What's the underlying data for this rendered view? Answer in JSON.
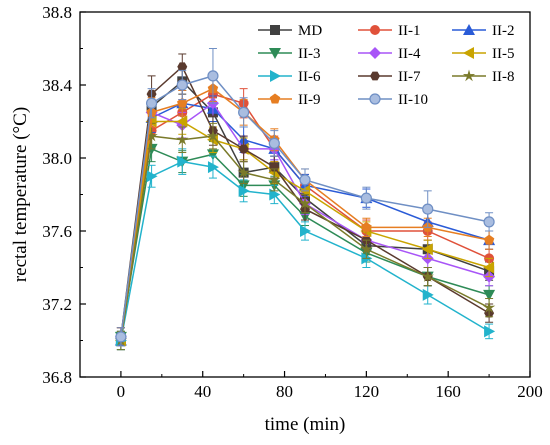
{
  "chart_data": {
    "type": "line",
    "xlabel": "time (min)",
    "ylabel": "rectal temperature (°C)",
    "xlim": [
      -20,
      200
    ],
    "ylim": [
      36.8,
      38.8
    ],
    "xticks": [
      0,
      40,
      80,
      120,
      160,
      200
    ],
    "xtick_labels": [
      "0",
      "40",
      "80",
      "120",
      "160",
      "200"
    ],
    "yticks": [
      36.8,
      37.2,
      37.6,
      38.0,
      38.4,
      38.8
    ],
    "ytick_labels": [
      "36.8",
      "37.2",
      "37.6",
      "38.0",
      "38.4",
      "38.8"
    ],
    "x": [
      0,
      15,
      30,
      45,
      60,
      75,
      90,
      120,
      150,
      180
    ],
    "grid": false,
    "legend": "top-right",
    "series": [
      {
        "name": "MD",
        "color": "#404040",
        "marker": "square",
        "values": [
          37.0,
          38.28,
          38.42,
          38.25,
          37.92,
          37.95,
          37.78,
          37.52,
          37.5,
          37.38
        ],
        "error": [
          0.05,
          0.08,
          0.07,
          0.08,
          0.07,
          0.06,
          0.06,
          0.05,
          0.05,
          0.05
        ]
      },
      {
        "name": "II-1",
        "color": "#e0513a",
        "marker": "circle",
        "values": [
          37.02,
          38.15,
          38.25,
          38.35,
          38.3,
          38.05,
          37.85,
          37.6,
          37.6,
          37.45
        ],
        "error": [
          0.05,
          0.08,
          0.07,
          0.08,
          0.08,
          0.07,
          0.06,
          0.06,
          0.05,
          0.05
        ]
      },
      {
        "name": "II-2",
        "color": "#2a5bd7",
        "marker": "triangle-up",
        "values": [
          37.0,
          38.22,
          38.3,
          38.27,
          38.1,
          38.05,
          37.85,
          37.78,
          37.65,
          37.55
        ],
        "error": [
          0.05,
          0.08,
          0.07,
          0.07,
          0.07,
          0.06,
          0.06,
          0.05,
          0.05,
          0.05
        ]
      },
      {
        "name": "II-3",
        "color": "#2e8b57",
        "marker": "triangle-down",
        "values": [
          37.02,
          38.05,
          37.98,
          38.02,
          37.85,
          37.85,
          37.68,
          37.48,
          37.35,
          37.25
        ],
        "error": [
          0.05,
          0.07,
          0.06,
          0.07,
          0.06,
          0.05,
          0.05,
          0.05,
          0.05,
          0.05
        ]
      },
      {
        "name": "II-4",
        "color": "#a855f7",
        "marker": "diamond",
        "values": [
          37.02,
          38.25,
          38.18,
          38.3,
          38.05,
          38.05,
          37.75,
          37.55,
          37.45,
          37.35
        ],
        "error": [
          0.05,
          0.07,
          0.07,
          0.07,
          0.07,
          0.06,
          0.06,
          0.05,
          0.05,
          0.05
        ]
      },
      {
        "name": "II-5",
        "color": "#c9a400",
        "marker": "triangle-left",
        "values": [
          37.0,
          38.2,
          38.2,
          38.1,
          38.05,
          37.92,
          37.82,
          37.6,
          37.5,
          37.4
        ],
        "error": [
          0.05,
          0.08,
          0.07,
          0.07,
          0.06,
          0.06,
          0.06,
          0.05,
          0.05,
          0.05
        ]
      },
      {
        "name": "II-6",
        "color": "#22b3cc",
        "marker": "triangle-right",
        "values": [
          37.0,
          37.9,
          37.98,
          37.95,
          37.82,
          37.8,
          37.6,
          37.45,
          37.25,
          37.05
        ],
        "error": [
          0.05,
          0.06,
          0.07,
          0.06,
          0.06,
          0.05,
          0.05,
          0.05,
          0.05,
          0.04
        ]
      },
      {
        "name": "II-7",
        "color": "#5a3a2e",
        "marker": "hexagon",
        "values": [
          37.02,
          38.35,
          38.5,
          38.15,
          38.05,
          37.95,
          37.72,
          37.55,
          37.35,
          37.15
        ],
        "error": [
          0.05,
          0.1,
          0.07,
          0.08,
          0.07,
          0.06,
          0.06,
          0.05,
          0.05,
          0.05
        ]
      },
      {
        "name": "II-8",
        "color": "#7a7a2a",
        "marker": "star",
        "values": [
          37.0,
          38.12,
          38.1,
          38.12,
          37.92,
          37.88,
          37.75,
          37.5,
          37.35,
          37.18
        ],
        "error": [
          0.05,
          0.07,
          0.07,
          0.07,
          0.06,
          0.06,
          0.05,
          0.05,
          0.05,
          0.05
        ]
      },
      {
        "name": "II-9",
        "color": "#e67e22",
        "marker": "pentagon",
        "values": [
          37.02,
          38.25,
          38.3,
          38.38,
          38.25,
          38.1,
          37.88,
          37.62,
          37.62,
          37.55
        ],
        "error": [
          0.05,
          0.08,
          0.07,
          0.07,
          0.07,
          0.06,
          0.06,
          0.05,
          0.05,
          0.05
        ]
      },
      {
        "name": "II-10",
        "color": "#6f8fc4",
        "marker": "circle-half",
        "values": [
          37.02,
          38.3,
          38.4,
          38.45,
          38.25,
          38.08,
          37.88,
          37.78,
          37.72,
          37.65
        ],
        "error": [
          0.05,
          0.08,
          0.08,
          0.15,
          0.08,
          0.07,
          0.06,
          0.06,
          0.1,
          0.05
        ]
      }
    ]
  }
}
